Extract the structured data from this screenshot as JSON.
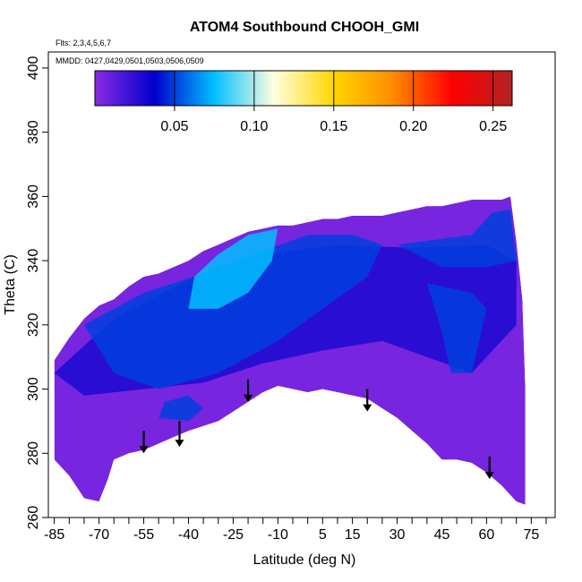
{
  "chart_data": {
    "type": "heatmap",
    "title": "ATOM4 Southbound CHOOH_GMI",
    "annotations": [
      "Flts: 2,3,4,5,6,7",
      "MMDD: 0427,0429,0501,0503,0506,0509"
    ],
    "xlabel": "Latitude (deg N)",
    "ylabel": "Theta (C)",
    "xlim": [
      -87,
      83
    ],
    "ylim": [
      260,
      405
    ],
    "x_ticks": [
      -85,
      -70,
      -55,
      -40,
      -25,
      -10,
      5,
      15,
      30,
      45,
      60,
      75
    ],
    "x_minor_ticks": [
      -80,
      -75,
      -65,
      -60,
      -50,
      -45,
      -35,
      -30,
      -20,
      -15,
      -5,
      0,
      10,
      20,
      25,
      35,
      40,
      50,
      55,
      65,
      70,
      80
    ],
    "y_ticks": [
      260,
      280,
      300,
      320,
      340,
      360,
      380,
      400
    ],
    "colorbar": {
      "range": [
        0,
        0.262
      ],
      "ticks": [
        0.05,
        0.1,
        0.15,
        0.2,
        0.25
      ],
      "tick_labels": [
        "0.05",
        "0.10",
        "0.15",
        "0.20",
        "0.25"
      ],
      "colors": [
        "#8a2be2",
        "#0000cd",
        "#00bfff",
        "#ffffe0",
        "#ffd700",
        "#ff8c00",
        "#ff0000",
        "#b22222"
      ]
    },
    "upper_boundary": [
      [
        -85,
        309
      ],
      [
        -80,
        316
      ],
      [
        -75,
        322
      ],
      [
        -70,
        326
      ],
      [
        -65,
        328
      ],
      [
        -60,
        332
      ],
      [
        -55,
        335
      ],
      [
        -50,
        336
      ],
      [
        -45,
        338
      ],
      [
        -40,
        340
      ],
      [
        -35,
        343
      ],
      [
        -30,
        345
      ],
      [
        -25,
        347
      ],
      [
        -20,
        349
      ],
      [
        -15,
        350
      ],
      [
        -10,
        351
      ],
      [
        -5,
        351
      ],
      [
        0,
        352
      ],
      [
        5,
        353
      ],
      [
        10,
        353
      ],
      [
        15,
        354
      ],
      [
        20,
        354
      ],
      [
        25,
        354
      ],
      [
        30,
        355
      ],
      [
        35,
        356
      ],
      [
        40,
        357
      ],
      [
        45,
        357
      ],
      [
        50,
        358
      ],
      [
        55,
        359
      ],
      [
        60,
        359
      ],
      [
        65,
        359
      ],
      [
        68,
        360
      ],
      [
        70,
        346
      ],
      [
        72,
        328
      ],
      [
        73,
        300
      ],
      [
        73,
        264
      ]
    ],
    "lower_boundary": [
      [
        -85,
        278
      ],
      [
        -80,
        273
      ],
      [
        -75,
        266
      ],
      [
        -70,
        265
      ],
      [
        -67,
        272
      ],
      [
        -65,
        278
      ],
      [
        -60,
        280
      ],
      [
        -55,
        281
      ],
      [
        -50,
        283
      ],
      [
        -45,
        285
      ],
      [
        -40,
        287
      ],
      [
        -30,
        290
      ],
      [
        -20,
        296
      ],
      [
        -15,
        299
      ],
      [
        -10,
        301
      ],
      [
        0,
        299
      ],
      [
        5,
        300
      ],
      [
        10,
        299
      ],
      [
        20,
        297
      ],
      [
        25,
        294
      ],
      [
        30,
        291
      ],
      [
        35,
        287
      ],
      [
        40,
        283
      ],
      [
        45,
        278
      ],
      [
        50,
        278
      ],
      [
        55,
        277
      ],
      [
        60,
        274
      ],
      [
        65,
        270
      ],
      [
        70,
        265
      ],
      [
        73,
        264
      ]
    ],
    "concentration_regions": [
      {
        "level": 0.03,
        "points": [
          [
            -85,
            305
          ],
          [
            -65,
            322
          ],
          [
            -40,
            334
          ],
          [
            -15,
            342
          ],
          [
            10,
            345
          ],
          [
            35,
            344
          ],
          [
            60,
            345
          ],
          [
            70,
            340
          ],
          [
            70,
            320
          ],
          [
            55,
            305
          ],
          [
            40,
            310
          ],
          [
            25,
            315
          ],
          [
            5,
            312
          ],
          [
            -15,
            308
          ],
          [
            -35,
            302
          ],
          [
            -55,
            300
          ],
          [
            -75,
            298
          ]
        ]
      },
      {
        "level": 0.05,
        "points": [
          [
            -75,
            320
          ],
          [
            -55,
            330
          ],
          [
            -35,
            336
          ],
          [
            -15,
            343
          ],
          [
            0,
            348
          ],
          [
            15,
            348
          ],
          [
            25,
            345
          ],
          [
            20,
            335
          ],
          [
            5,
            325
          ],
          [
            -10,
            315
          ],
          [
            -30,
            305
          ],
          [
            -50,
            300
          ],
          [
            -65,
            305
          ]
        ]
      },
      {
        "level": 0.075,
        "points": [
          [
            -30,
            342
          ],
          [
            -20,
            348
          ],
          [
            -10,
            350
          ],
          [
            -12,
            340
          ],
          [
            -20,
            330
          ],
          [
            -30,
            325
          ],
          [
            -40,
            325
          ],
          [
            -38,
            335
          ]
        ]
      },
      {
        "level": 0.05,
        "points": [
          [
            -48,
            296
          ],
          [
            -40,
            298
          ],
          [
            -35,
            294
          ],
          [
            -40,
            290
          ],
          [
            -50,
            291
          ]
        ]
      },
      {
        "level": 0.05,
        "points": [
          [
            40,
            333
          ],
          [
            55,
            330
          ],
          [
            60,
            325
          ],
          [
            55,
            305
          ],
          [
            48,
            305
          ],
          [
            45,
            318
          ]
        ]
      },
      {
        "level": 0.05,
        "points": [
          [
            30,
            345
          ],
          [
            55,
            348
          ],
          [
            62,
            355
          ],
          [
            68,
            356
          ],
          [
            70,
            340
          ],
          [
            60,
            338
          ],
          [
            45,
            338
          ]
        ]
      }
    ],
    "arrows": [
      {
        "lat": -55,
        "theta_top": 287,
        "theta_bottom": 280
      },
      {
        "lat": -43,
        "theta_top": 290,
        "theta_bottom": 282
      },
      {
        "lat": -20,
        "theta_top": 303,
        "theta_bottom": 296
      },
      {
        "lat": 20,
        "theta_top": 300,
        "theta_bottom": 293
      },
      {
        "lat": 61,
        "theta_top": 279,
        "theta_bottom": 272
      }
    ]
  }
}
